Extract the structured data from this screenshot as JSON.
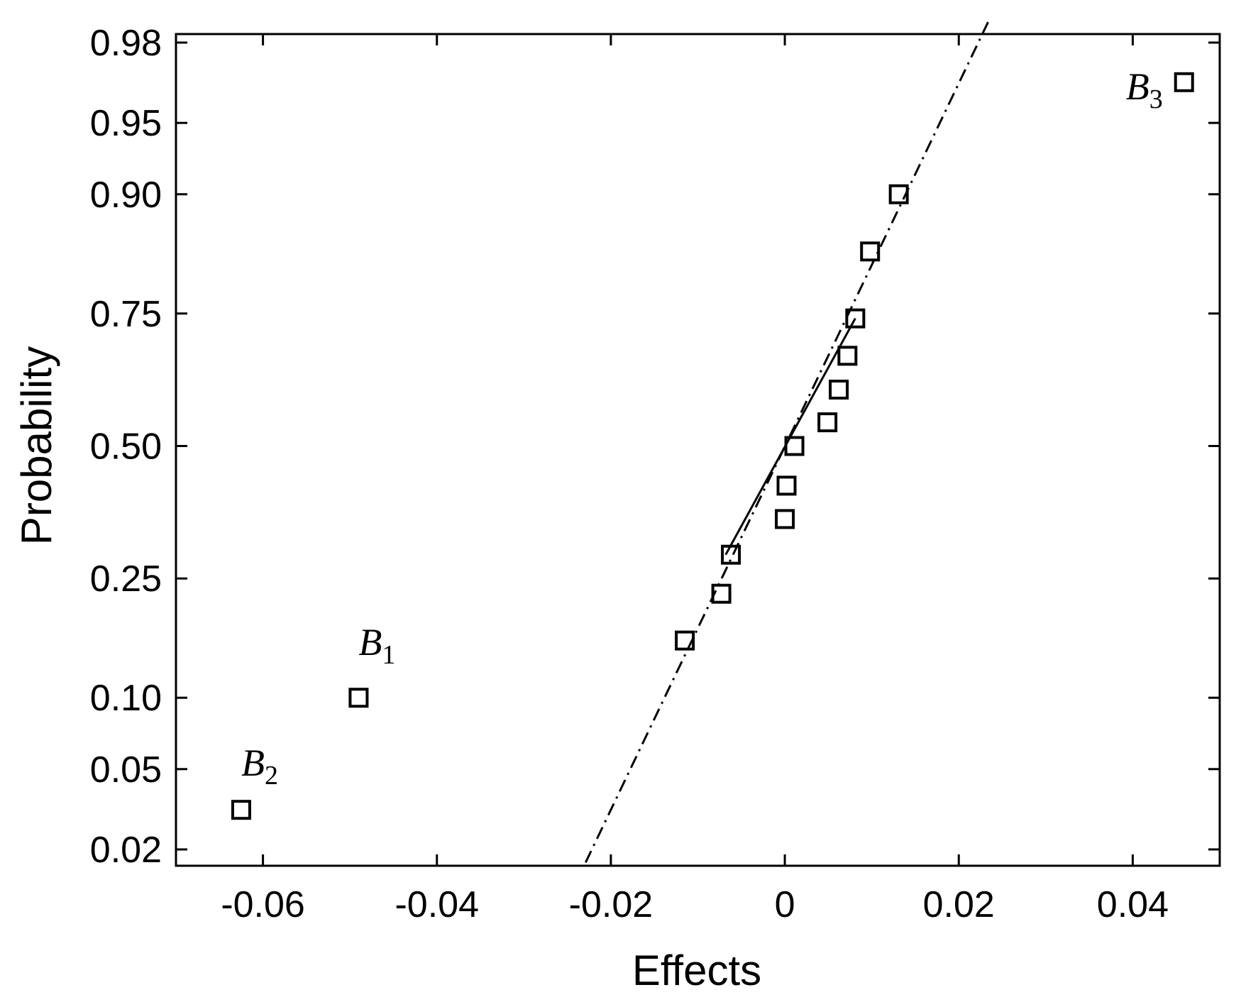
{
  "chart_data": {
    "type": "scatter",
    "xlabel": "Effects",
    "ylabel": "Probability",
    "xlim": [
      -0.07,
      0.05
    ],
    "x_ticks": [
      -0.06,
      -0.04,
      -0.02,
      0,
      0.02,
      0.04
    ],
    "x_tick_labels": [
      "-0.06",
      "-0.04",
      "-0.02",
      "0",
      "0.02",
      "0.04"
    ],
    "y_scale": "normal-probability",
    "y_ticks": [
      0.02,
      0.05,
      0.1,
      0.25,
      0.5,
      0.75,
      0.9,
      0.95,
      0.98
    ],
    "y_tick_labels": [
      "0.02",
      "0.05",
      "0.10",
      "0.25",
      "0.50",
      "0.75",
      "0.90",
      "0.95",
      "0.98"
    ],
    "grid": false,
    "marker": "open-square",
    "points": [
      {
        "x": -0.0625,
        "y": 0.032
      },
      {
        "x": -0.049,
        "y": 0.1
      },
      {
        "x": -0.0115,
        "y": 0.161
      },
      {
        "x": -0.0073,
        "y": 0.226
      },
      {
        "x": -0.0062,
        "y": 0.29
      },
      {
        "x": 0.0,
        "y": 0.355
      },
      {
        "x": 0.0002,
        "y": 0.42
      },
      {
        "x": 0.0011,
        "y": 0.5
      },
      {
        "x": 0.0049,
        "y": 0.548
      },
      {
        "x": 0.0062,
        "y": 0.613
      },
      {
        "x": 0.0072,
        "y": 0.677
      },
      {
        "x": 0.0081,
        "y": 0.742
      },
      {
        "x": 0.0098,
        "y": 0.839
      },
      {
        "x": 0.0131,
        "y": 0.9
      },
      {
        "x": 0.0459,
        "y": 0.968
      }
    ],
    "annotations": [
      {
        "base": "B",
        "sub": "1",
        "x": -0.049,
        "y": 0.1
      },
      {
        "base": "B",
        "sub": "2",
        "x": -0.0625,
        "y": 0.032
      },
      {
        "base": "B",
        "sub": "3",
        "x": 0.0459,
        "y": 0.968
      }
    ],
    "reference_line": {
      "style": "dash-dot",
      "from": {
        "x": -0.0229,
        "y": 0.017
      },
      "to": {
        "x": 0.0235,
        "y": 0.985
      }
    },
    "fit_line": {
      "style": "solid",
      "from": {
        "x": -0.0068,
        "y": 0.29
      },
      "to": {
        "x": 0.0081,
        "y": 0.742
      }
    }
  }
}
